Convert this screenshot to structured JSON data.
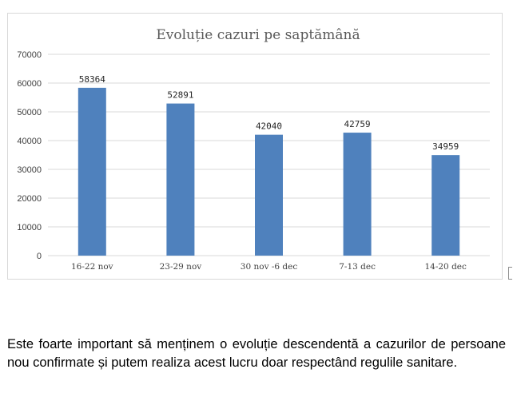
{
  "chart_data": {
    "type": "bar",
    "title": "Evoluție cazuri pe saptămână",
    "categories": [
      "16-22 nov",
      "23-29 nov",
      "30 nov -6 dec",
      "7-13 dec",
      "14-20 dec"
    ],
    "values": [
      58364,
      52891,
      42040,
      42759,
      34959
    ],
    "data_labels": [
      "58364",
      "52891",
      "42040",
      "42759",
      "34959"
    ],
    "xlabel": "",
    "ylabel": "",
    "ylim": [
      0,
      70000
    ],
    "yticks": [
      0,
      10000,
      20000,
      30000,
      40000,
      50000,
      60000,
      70000
    ],
    "ytick_labels": [
      "0",
      "10000",
      "20000",
      "30000",
      "40000",
      "50000",
      "60000",
      "70000"
    ],
    "grid": true,
    "legend": "none",
    "bar_color": "#4f81bd",
    "grid_color": "#d9d9d9"
  },
  "paragraph": {
    "text": "Este foarte important să menținem o evoluție descendentă a cazurilor de persoane nou confirmate și putem realiza acest lucru doar respectând regulile sanitare."
  }
}
